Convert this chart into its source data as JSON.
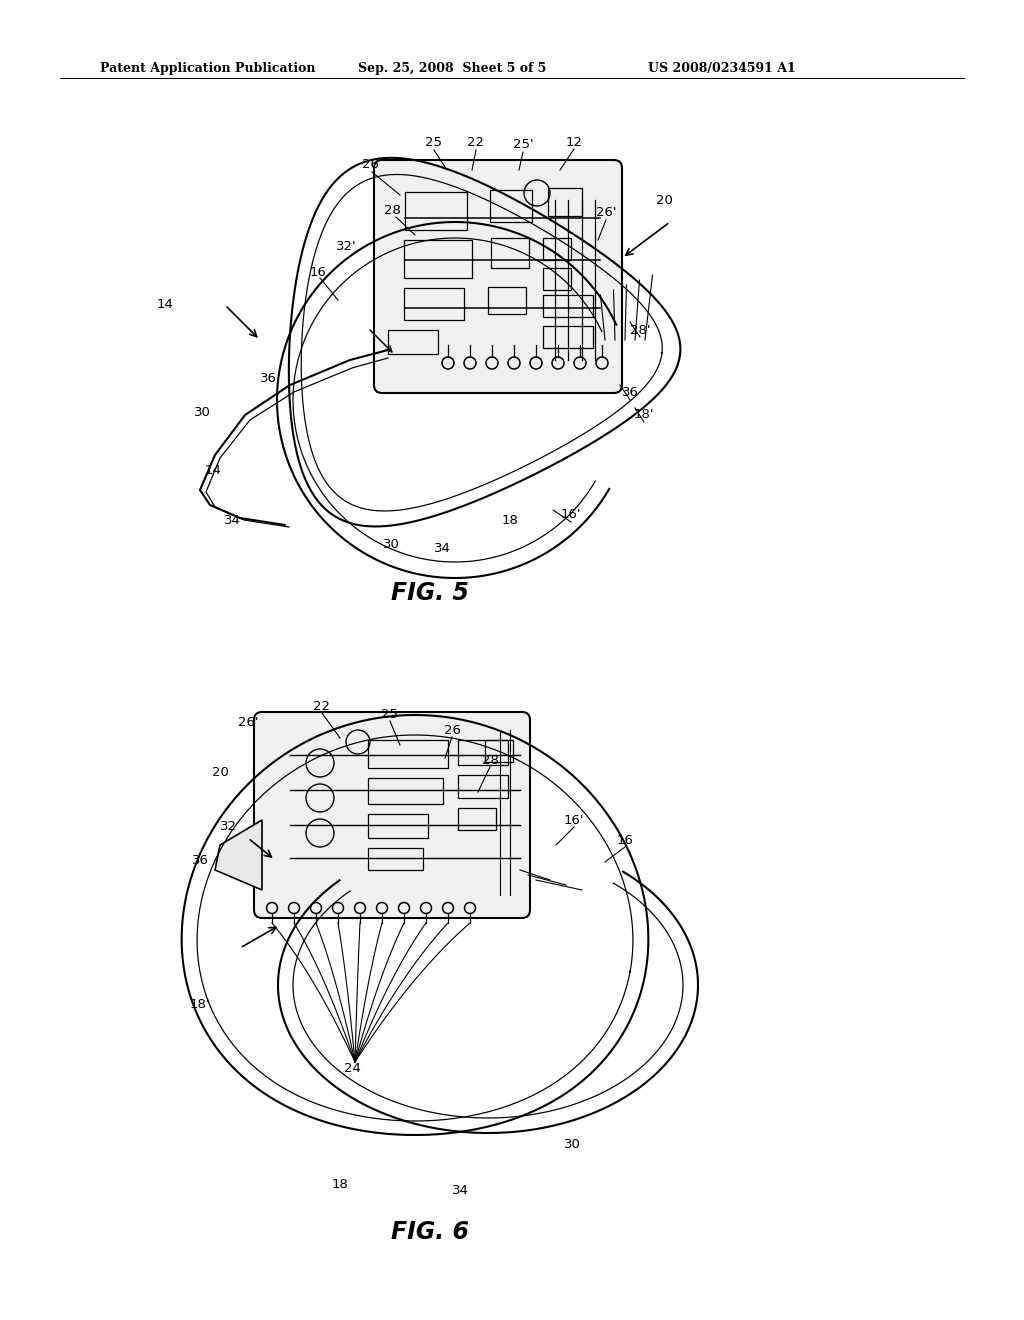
{
  "bg_color": "#ffffff",
  "text_color": "#000000",
  "line_color": "#000000",
  "header_left": "Patent Application Publication",
  "header_mid": "Sep. 25, 2008  Sheet 5 of 5",
  "header_right": "US 2008/0234591 A1",
  "fig5_label": "FIG. 5",
  "fig6_label": "FIG. 6"
}
